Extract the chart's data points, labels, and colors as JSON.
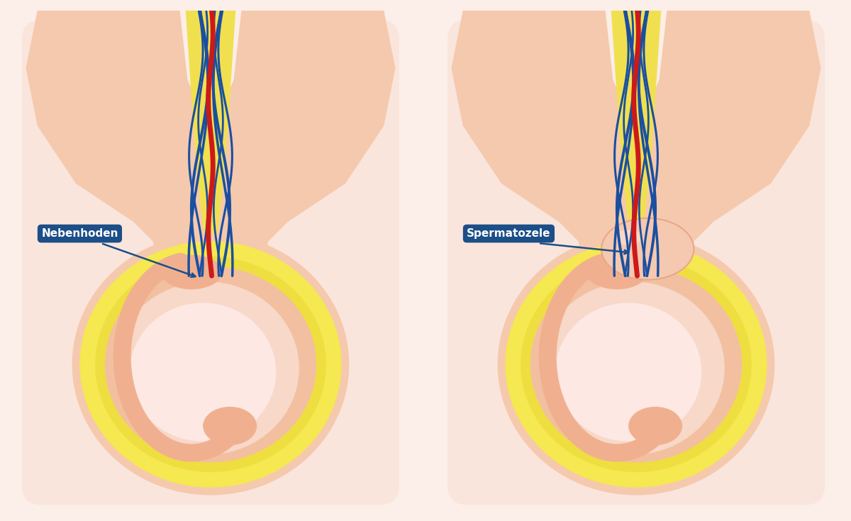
{
  "bg_color": "#FCEEE8",
  "panel_bg": "#FAE5DC",
  "skin_light": "#F5C9AD",
  "skin_mid": "#F0B898",
  "yellow_bright": "#F5E84A",
  "yellow_sheath": "#F0E050",
  "yellow_outline": "#D8C840",
  "scrotum_outer_skin": "#F0C8A8",
  "scrotum_ring_outer": "#F5E850",
  "scrotum_ring_inner": "#EEDE40",
  "scrotum_mid_skin": "#F2C0A0",
  "testicle_shell": "#F8D8C8",
  "testicle_center": "#FDE8E4",
  "epi_color": "#F0B090",
  "blue_vein": "#1A4FA0",
  "red_artery": "#CC1A1A",
  "label_bg": "#1C4E88",
  "label_fg": "#FFFFFF",
  "label_normal": "Nebenhoden",
  "label_cyst": "Spermatozele",
  "cyst_fill": "#F5C8B0",
  "cyst_edge": "#E8A888"
}
